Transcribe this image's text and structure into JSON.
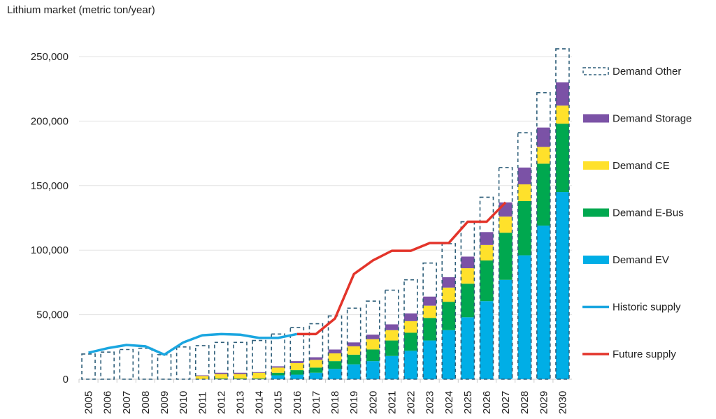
{
  "chart_data": {
    "type": "bar",
    "stacked": true,
    "title": "Lithium market (metric ton/year)",
    "ylim": [
      0,
      250000
    ],
    "yticks": [
      0,
      50000,
      100000,
      150000,
      200000,
      250000
    ],
    "ytick_labels": [
      "0",
      "50,000",
      "100,000",
      "150,000",
      "200,000",
      "250,000"
    ],
    "grid": "horizontal",
    "legend_position": "right",
    "categories": [
      "2005",
      "2006",
      "2007",
      "2008",
      "2009",
      "2010",
      "2011",
      "2012",
      "2013",
      "2014",
      "2015",
      "2016",
      "2017",
      "2018",
      "2019",
      "2020",
      "2021",
      "2022",
      "2023",
      "2024",
      "2025",
      "2026",
      "2027",
      "2028",
      "2029",
      "2030"
    ],
    "series": [
      {
        "name": "Demand EV",
        "color": "#00aee6",
        "values": [
          0,
          0,
          0,
          0,
          0,
          0,
          0,
          0,
          0,
          0,
          3000,
          3500,
          5000,
          8000,
          11500,
          14000,
          18000,
          22000,
          30000,
          38000,
          48000,
          60500,
          77000,
          96000,
          119000,
          145000
        ]
      },
      {
        "name": "Demand E-Bus",
        "color": "#00a84f",
        "values": [
          0,
          0,
          0,
          0,
          0,
          0,
          0,
          500,
          500,
          500,
          2000,
          3500,
          4000,
          6000,
          7500,
          9000,
          12000,
          14000,
          17500,
          22000,
          26000,
          31500,
          36500,
          42000,
          48000,
          53000
        ]
      },
      {
        "name": "Demand CE",
        "color": "#ffe12b",
        "values": [
          0,
          0,
          0,
          0,
          0,
          0,
          2500,
          3500,
          3500,
          4500,
          4000,
          5500,
          6000,
          6000,
          6500,
          8000,
          8000,
          9000,
          9500,
          11000,
          12000,
          12000,
          12500,
          13000,
          13000,
          14000
        ]
      },
      {
        "name": "Demand Storage",
        "color": "#7b52a6",
        "values": [
          0,
          0,
          0,
          0,
          0,
          0,
          500,
          1000,
          1000,
          500,
          1000,
          1500,
          2000,
          3000,
          3000,
          3500,
          4500,
          6000,
          7000,
          8000,
          9000,
          10000,
          11000,
          13000,
          15000,
          18000
        ]
      },
      {
        "name": "Demand Other",
        "color": "#2f5f7a",
        "style": "dashed-outline",
        "values": [
          19500,
          21000,
          23000,
          24000,
          19000,
          25000,
          23000,
          23500,
          23500,
          24500,
          25000,
          26000,
          26000,
          26000,
          26500,
          26000,
          26500,
          26000,
          26000,
          26000,
          27000,
          27000,
          27000,
          27000,
          27000,
          26000
        ]
      }
    ],
    "lines": [
      {
        "name": "Historic supply",
        "color": "#1aa6e0",
        "x": [
          "2005",
          "2006",
          "2007",
          "2008",
          "2009",
          "2010",
          "2011",
          "2012",
          "2013",
          "2014",
          "2015",
          "2016"
        ],
        "values": [
          20500,
          24000,
          26500,
          25500,
          19000,
          28500,
          34000,
          35000,
          34500,
          32000,
          32000,
          35000
        ]
      },
      {
        "name": "Future supply",
        "color": "#e3342a",
        "x": [
          "2016",
          "2017",
          "2018",
          "2019",
          "2020",
          "2021",
          "2022",
          "2023",
          "2024",
          "2025",
          "2026",
          "2027"
        ],
        "values": [
          35000,
          35000,
          47000,
          81500,
          92000,
          99500,
          99500,
          105500,
          105500,
          122000,
          122000,
          137000
        ]
      }
    ],
    "legend_order": [
      "Demand Other",
      "Demand Storage",
      "Demand CE",
      "Demand E-Bus",
      "Demand EV",
      "Historic supply",
      "Future supply"
    ]
  }
}
